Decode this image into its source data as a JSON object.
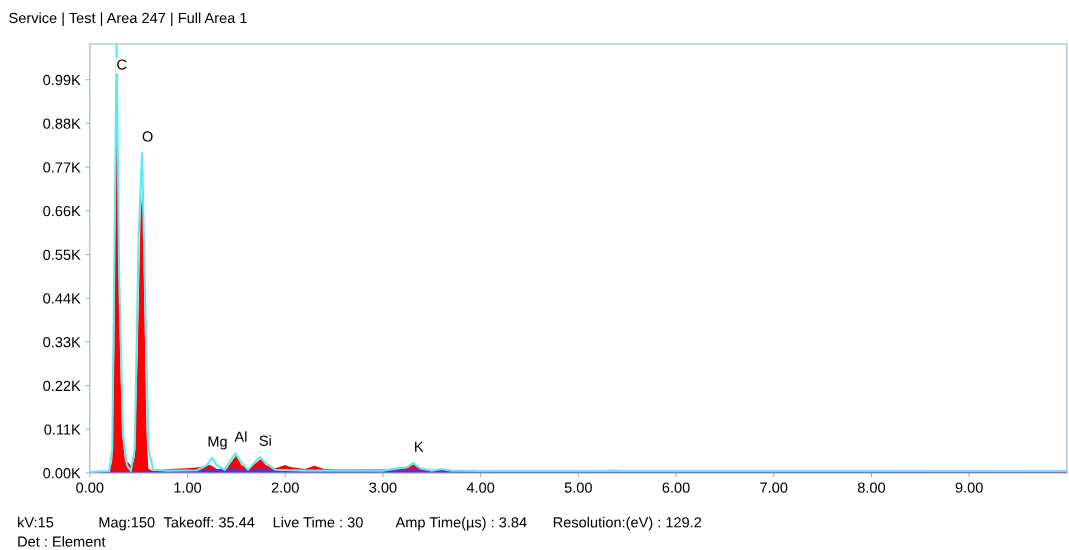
{
  "chart_data": {
    "type": "area",
    "title": "Service | Test | Area 247 | Full Area 1",
    "xlim": [
      0,
      10
    ],
    "ylim": [
      0,
      1080
    ],
    "xticks": [
      {
        "value": 0,
        "label": "0.00"
      },
      {
        "value": 1,
        "label": "1.00"
      },
      {
        "value": 2,
        "label": "2.00"
      },
      {
        "value": 3,
        "label": "3.00"
      },
      {
        "value": 4,
        "label": "4.00"
      },
      {
        "value": 5,
        "label": "5.00"
      },
      {
        "value": 6,
        "label": "6.00"
      },
      {
        "value": 7,
        "label": "7.00"
      },
      {
        "value": 8,
        "label": "8.00"
      },
      {
        "value": 9,
        "label": "9.00"
      }
    ],
    "yticks": [
      {
        "value": 0,
        "label": "0.00K"
      },
      {
        "value": 110,
        "label": "0.11K"
      },
      {
        "value": 220,
        "label": "0.22K"
      },
      {
        "value": 330,
        "label": "0.33K"
      },
      {
        "value": 440,
        "label": "0.44K"
      },
      {
        "value": 550,
        "label": "0.55K"
      },
      {
        "value": 660,
        "label": "0.66K"
      },
      {
        "value": 770,
        "label": "0.77K"
      },
      {
        "value": 880,
        "label": "0.88K"
      },
      {
        "value": 990,
        "label": "0.99K"
      }
    ],
    "grid": false,
    "legend": false,
    "series": [
      {
        "color": "#ff0000",
        "x": [
          0,
          0.1,
          0.15,
          0.2,
          0.23,
          0.25,
          0.27,
          0.29,
          0.31,
          0.33,
          0.36,
          0.4,
          0.43,
          0.46,
          0.49,
          0.52,
          0.54,
          0.56,
          0.58,
          0.6,
          0.65,
          0.8,
          1.0,
          1.15,
          1.22,
          1.25,
          1.3,
          1.4,
          1.47,
          1.5,
          1.55,
          1.62,
          1.7,
          1.75,
          1.8,
          1.9,
          2.0,
          2.05,
          2.2,
          2.3,
          2.4,
          2.6,
          3.0,
          3.25,
          3.31,
          3.38,
          3.5,
          3.6,
          3.7,
          4.0,
          5.0,
          5.35,
          6.0,
          7.0,
          8.0,
          9.0,
          10.0
        ],
        "values": [
          0,
          3,
          2,
          5,
          30,
          300,
          987,
          700,
          300,
          100,
          30,
          25,
          15,
          40,
          300,
          650,
          718,
          400,
          100,
          10,
          5,
          10,
          12,
          15,
          20,
          18,
          10,
          10,
          35,
          45,
          20,
          10,
          25,
          35,
          20,
          12,
          20,
          15,
          10,
          18,
          10,
          8,
          8,
          12,
          22,
          10,
          6,
          8,
          5,
          6,
          5,
          8,
          4,
          4,
          4,
          3,
          3
        ]
      },
      {
        "type": "area",
        "color": "#6a2bc4",
        "x": [
          0,
          0.25,
          0.5,
          1.2,
          1.3,
          1.45,
          1.5,
          1.6,
          1.7,
          1.8,
          1.95,
          3.25,
          3.33,
          3.4,
          3.55,
          3.65,
          3.75,
          10.0
        ],
        "values": [
          0,
          4,
          5,
          8,
          10,
          12,
          12,
          6,
          12,
          12,
          6,
          10,
          12,
          6,
          8,
          8,
          3,
          2
        ]
      },
      {
        "type": "line",
        "color": "#5ee8f0",
        "x": [
          0,
          0.1,
          0.2,
          0.23,
          0.25,
          0.275,
          0.3,
          0.34,
          0.38,
          0.42,
          0.46,
          0.5,
          0.535,
          0.57,
          0.6,
          0.65,
          0.8,
          1.1,
          1.2,
          1.25,
          1.3,
          1.38,
          1.45,
          1.49,
          1.54,
          1.62,
          1.7,
          1.74,
          1.8,
          1.9,
          2.2,
          3.0,
          3.25,
          3.31,
          3.38,
          3.5,
          3.6,
          3.7,
          4.0,
          10.0
        ],
        "values": [
          2,
          4,
          5,
          60,
          500,
          1080,
          500,
          100,
          20,
          5,
          60,
          600,
          806,
          400,
          60,
          8,
          6,
          7,
          20,
          38,
          20,
          8,
          35,
          50,
          30,
          8,
          30,
          40,
          25,
          8,
          6,
          6,
          15,
          25,
          12,
          6,
          10,
          6,
          5,
          5
        ]
      }
    ],
    "annotations": [
      {
        "text": "C",
        "x": 0.27,
        "y": 987
      },
      {
        "text": "O",
        "x": 0.535,
        "y": 806
      },
      {
        "text": "Mg",
        "x": 1.25,
        "y": 38
      },
      {
        "text": "Al",
        "x": 1.49,
        "y": 50
      },
      {
        "text": "Si",
        "x": 1.74,
        "y": 40
      },
      {
        "text": "K",
        "x": 3.31,
        "y": 25
      },
      "kV:15",
      "Mag:150",
      "Takeoff: 35.44",
      "Live Time : 30",
      "Amp Time(µs) : 3.84",
      "Resolution:(eV) : 129.2",
      "Det : Element"
    ]
  }
}
